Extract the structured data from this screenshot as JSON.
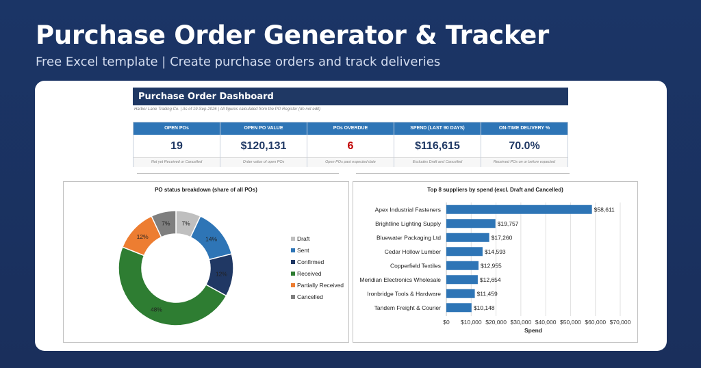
{
  "hero": {
    "title": "Purchase Order Generator & Tracker",
    "subtitle": "Free Excel template  |  Create purchase orders and track deliveries"
  },
  "dashboard": {
    "title": "Purchase Order Dashboard",
    "meta": "Harbor Lane Trading Co.  |  As of 19-Sep-2026  |  All figures calculated from the PO Register (do not edit)",
    "kpis": [
      {
        "label": "OPEN POs",
        "value": "19",
        "note": "Not yet Received or Cancelled"
      },
      {
        "label": "OPEN PO VALUE",
        "value": "$120,131",
        "note": "Order value of open POs"
      },
      {
        "label": "POs OVERDUE",
        "value": "6",
        "note": "Open POs past expected date"
      },
      {
        "label": "SPEND (LAST 90 DAYS)",
        "value": "$116,615",
        "note": "Excludes Draft and Cancelled"
      },
      {
        "label": "ON-TIME DELIVERY %",
        "value": "70.0%",
        "note": "Received POs on or before expected"
      }
    ]
  },
  "colors": {
    "draft": "#bfbfbf",
    "sent": "#2e75b6",
    "confirmed": "#203864",
    "received": "#2e7d32",
    "partial": "#ed7d31",
    "cancelled": "#7f7f7f",
    "bar": "#2e75b6",
    "overdue": "#c00000"
  },
  "chart_data": [
    {
      "type": "pie",
      "title": "PO status breakdown (share of all POs)",
      "categories": [
        "Draft",
        "Sent",
        "Confirmed",
        "Received",
        "Partially Received",
        "Cancelled"
      ],
      "values": [
        7,
        14,
        12,
        48,
        12,
        7
      ],
      "labels": [
        "7%",
        "14%",
        "12%",
        "48%",
        "12%",
        "7%"
      ],
      "donut": true,
      "legend": "right"
    },
    {
      "type": "bar",
      "orientation": "horizontal",
      "title": "Top 8 suppliers by spend (excl. Draft and Cancelled)",
      "categories": [
        "Apex Industrial Fasteners",
        "Brightline Lighting Supply",
        "Bluewater Packaging Ltd",
        "Cedar Hollow Lumber",
        "Copperfield Textiles",
        "Meridian Electronics Wholesale",
        "Ironbridge Tools & Hardware",
        "Tandem Freight & Courier"
      ],
      "values": [
        58611,
        19757,
        17260,
        14593,
        12955,
        12654,
        11459,
        10148
      ],
      "labels": [
        "$58,611",
        "$19,757",
        "$17,260",
        "$14,593",
        "$12,955",
        "$12,654",
        "$11,459",
        "$10,148"
      ],
      "xlabel": "Spend",
      "xlim": [
        0,
        70000
      ],
      "xticks": [
        "$0",
        "$10,000",
        "$20,000",
        "$30,000",
        "$40,000",
        "$50,000",
        "$60,000",
        "$70,000"
      ],
      "grid": true
    }
  ]
}
